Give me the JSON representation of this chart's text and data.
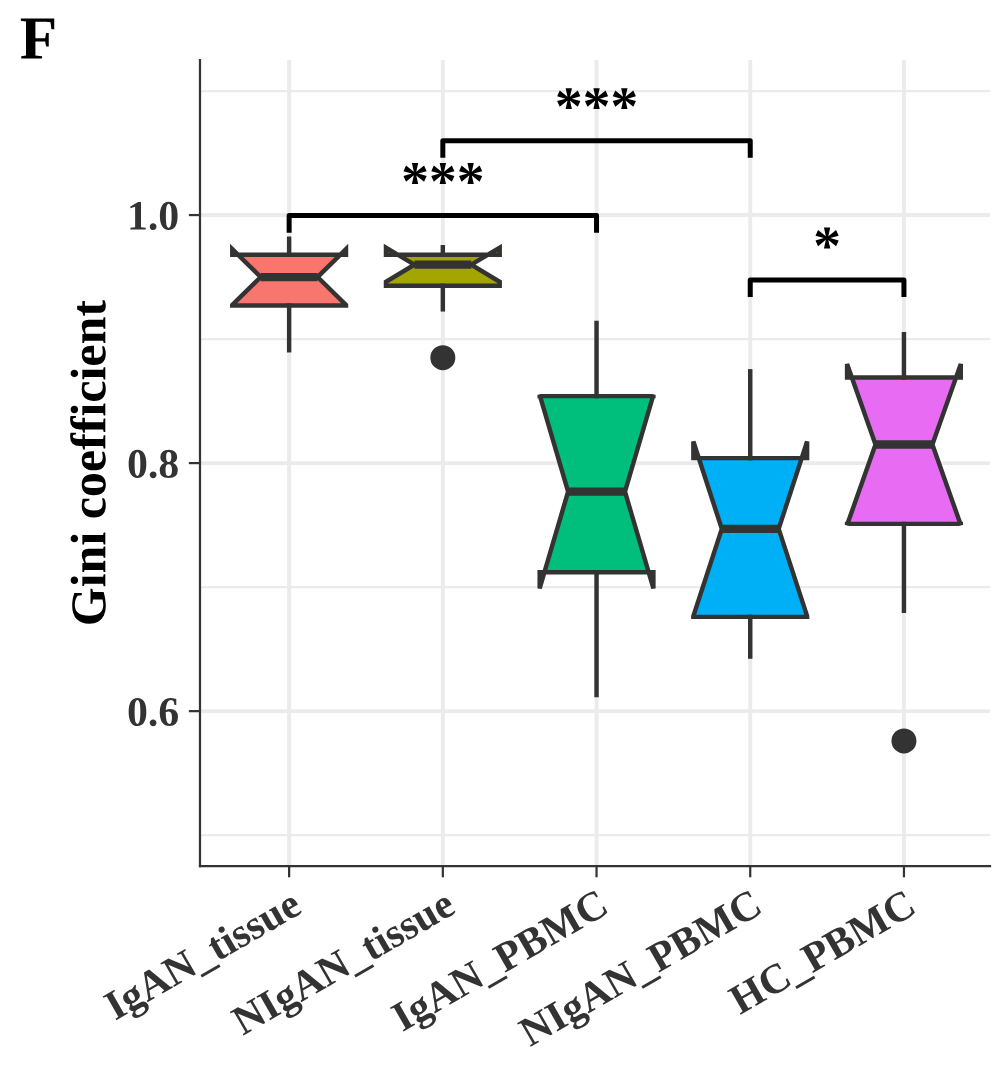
{
  "chart_data": {
    "type": "box",
    "title": "F",
    "ylabel": "Gini coefficient",
    "categories": [
      "IgAN_tissue",
      "NIgAN_tissue",
      "IgAN_PBMC",
      "NIgAN_PBMC",
      "HC_PBMC"
    ],
    "colors": [
      "#f8766d",
      "#a3a500",
      "#00bf7d",
      "#00b0f6",
      "#e76bf3"
    ],
    "boxes": [
      {
        "low": 0.891,
        "q1": 0.927,
        "median": 0.95,
        "q3": 0.968,
        "high": 0.981
      },
      {
        "low": 0.924,
        "q1": 0.943,
        "median": 0.96,
        "q3": 0.968,
        "high": 0.974,
        "outliers": [
          0.885
        ]
      },
      {
        "low": 0.613,
        "q1": 0.712,
        "median": 0.777,
        "q3": 0.854,
        "high": 0.913
      },
      {
        "low": 0.644,
        "q1": 0.676,
        "median": 0.747,
        "q3": 0.804,
        "high": 0.874
      },
      {
        "low": 0.681,
        "q1": 0.751,
        "median": 0.815,
        "q3": 0.869,
        "high": 0.904,
        "outliers": [
          0.576
        ]
      }
    ],
    "ylim": [
      0.475,
      1.125
    ],
    "yticks": [
      {
        "value": 0.6,
        "label": "0.6"
      },
      {
        "value": 0.8,
        "label": "0.8"
      },
      {
        "value": 1.0,
        "label": "1.0"
      }
    ],
    "grid": true,
    "annotations": [
      "***",
      "***",
      "*"
    ]
  }
}
